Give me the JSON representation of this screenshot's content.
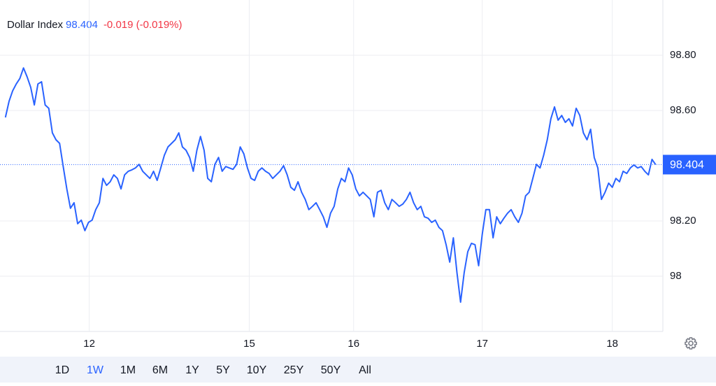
{
  "chart_data": {
    "type": "line",
    "title": "Dollar Index",
    "price": 98.404,
    "change": "-0.019 (-0.019%)",
    "color": "#2962ff",
    "change_color": "#f23645",
    "grid": true,
    "x": [
      0,
      1,
      2,
      3,
      4,
      5,
      6,
      7,
      8,
      9,
      10,
      11,
      12,
      13,
      14,
      15,
      16,
      17,
      18,
      19,
      20,
      21,
      22,
      23,
      24,
      25,
      26,
      27,
      28,
      29,
      30,
      31,
      32,
      33,
      34,
      35,
      36,
      37,
      38,
      39,
      40,
      41,
      42,
      43,
      44,
      45,
      46,
      47,
      48,
      49,
      50,
      51,
      52,
      53,
      54,
      55,
      56,
      57,
      58,
      59,
      60,
      61,
      62,
      63,
      64,
      65,
      66,
      67,
      68,
      69,
      70,
      71,
      72,
      73,
      74,
      75,
      76,
      77,
      78,
      79,
      80,
      81,
      82,
      83,
      84,
      85,
      86,
      87,
      88,
      89,
      90,
      91,
      92,
      93,
      94,
      95,
      96,
      97,
      98,
      99,
      100,
      101,
      102,
      103,
      104,
      105,
      106,
      107,
      108,
      109,
      110,
      111,
      112,
      113,
      114,
      115,
      116,
      117,
      118,
      119,
      120,
      121,
      122,
      123,
      124,
      125,
      126,
      127,
      128,
      129,
      130,
      131,
      132,
      133,
      134,
      135,
      136,
      137,
      138,
      139,
      140,
      141,
      142,
      143,
      144,
      145,
      146,
      147,
      148,
      149,
      150,
      151,
      152,
      153,
      154,
      155,
      156,
      157,
      158,
      159,
      160,
      161,
      162,
      163,
      164,
      165,
      166,
      167,
      168,
      169,
      170,
      171,
      172,
      173,
      174,
      175,
      176,
      177,
      178,
      179,
      180
    ],
    "values": [
      98.575,
      98.633,
      98.671,
      98.696,
      98.716,
      98.754,
      98.722,
      98.684,
      98.62,
      98.696,
      98.704,
      98.62,
      98.608,
      98.519,
      98.494,
      98.481,
      98.397,
      98.316,
      98.246,
      98.266,
      98.19,
      98.203,
      98.165,
      98.195,
      98.203,
      98.241,
      98.266,
      98.354,
      98.329,
      98.342,
      98.367,
      98.354,
      98.316,
      98.367,
      98.38,
      98.385,
      98.392,
      98.405,
      98.38,
      98.367,
      98.354,
      98.38,
      98.347,
      98.392,
      98.438,
      98.468,
      98.481,
      98.494,
      98.519,
      98.468,
      98.456,
      98.43,
      98.38,
      98.456,
      98.506,
      98.456,
      98.354,
      98.342,
      98.405,
      98.43,
      98.38,
      98.397,
      98.392,
      98.387,
      98.405,
      98.468,
      98.443,
      98.392,
      98.354,
      98.347,
      98.38,
      98.392,
      98.38,
      98.372,
      98.354,
      98.367,
      98.38,
      98.4,
      98.367,
      98.322,
      98.311,
      98.342,
      98.304,
      98.278,
      98.241,
      98.253,
      98.266,
      98.241,
      98.215,
      98.177,
      98.228,
      98.253,
      98.316,
      98.354,
      98.342,
      98.392,
      98.367,
      98.316,
      98.291,
      98.304,
      98.291,
      98.278,
      98.215,
      98.304,
      98.311,
      98.266,
      98.241,
      98.278,
      98.266,
      98.253,
      98.261,
      98.278,
      98.304,
      98.266,
      98.241,
      98.253,
      98.215,
      98.21,
      98.195,
      98.203,
      98.177,
      98.165,
      98.114,
      98.051,
      98.139,
      98.013,
      97.906,
      98.013,
      98.089,
      98.119,
      98.114,
      98.038,
      98.152,
      98.241,
      98.241,
      98.139,
      98.215,
      98.19,
      98.21,
      98.228,
      98.241,
      98.215,
      98.195,
      98.228,
      98.291,
      98.304,
      98.354,
      98.405,
      98.392,
      98.438,
      98.494,
      98.57,
      98.613,
      98.565,
      98.582,
      98.557,
      98.57,
      98.544,
      98.608,
      98.582,
      98.519,
      98.494,
      98.532,
      98.43,
      98.392,
      98.278,
      98.304,
      98.337,
      98.322,
      98.354,
      98.342,
      98.38,
      98.372,
      98.392,
      98.403,
      98.392,
      98.397,
      98.38,
      98.367,
      98.423,
      98.404
    ],
    "xlim": [
      -1.5,
      182
    ],
    "xticks": [
      {
        "value": 23.2,
        "label": "12"
      },
      {
        "value": 67.5,
        "label": "15"
      },
      {
        "value": 96.4,
        "label": "16"
      },
      {
        "value": 132,
        "label": "17"
      },
      {
        "value": 168,
        "label": "18"
      }
    ],
    "ylim": [
      97.8,
      99.0
    ],
    "yticks": [
      98,
      {
        "value": 98.2,
        "label": "98.20"
      },
      {
        "value": 98.6,
        "label": "98.60"
      },
      {
        "value": 98.8,
        "label": "98.80"
      }
    ],
    "ranges": [
      "1D",
      "1W",
      "1M",
      "6M",
      "1Y",
      "5Y",
      "10Y",
      "25Y",
      "50Y",
      "All"
    ],
    "selected_range": "1W"
  }
}
